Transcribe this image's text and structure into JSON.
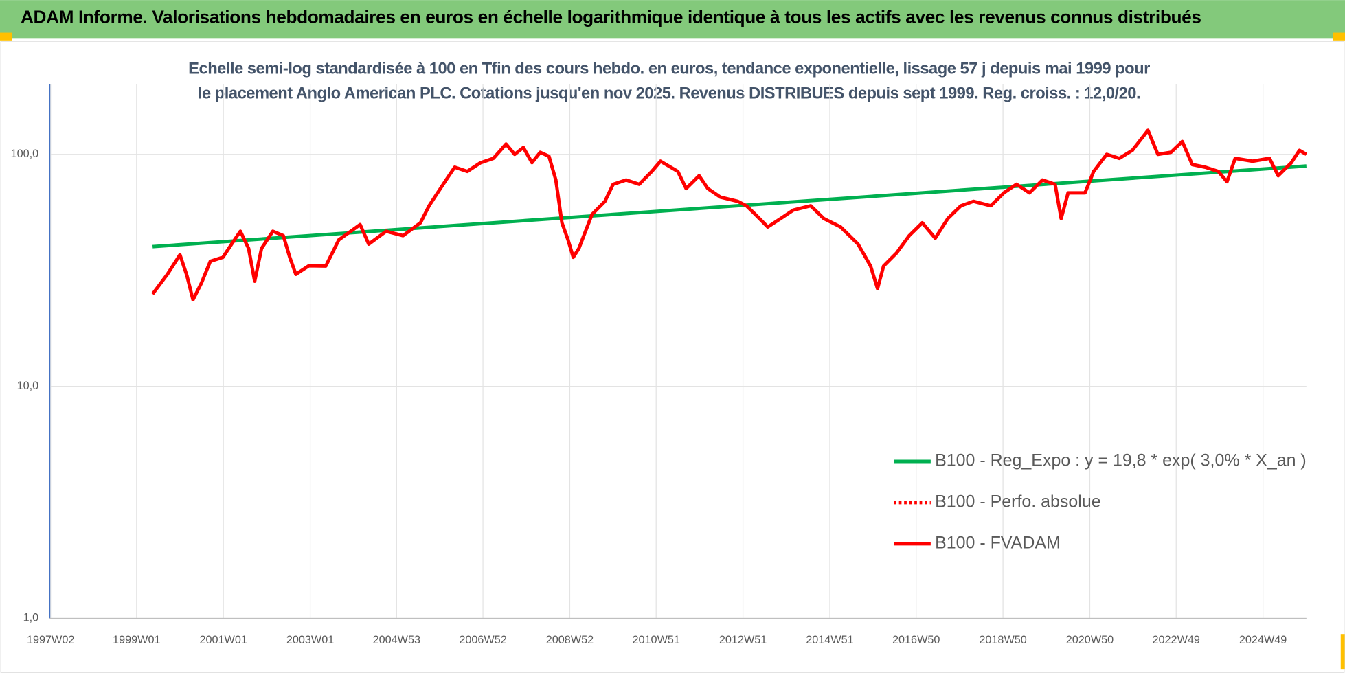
{
  "chart_data": {
    "type": "line",
    "title": "ADAM Informe. Valorisations hebdomadaires en euros en échelle logarithmique identique à tous les actifs avec les revenus connus distribués",
    "subtitle": "Echelle semi-log standardisée à 100 en Tfin des cours hebdo. en euros, tendance exponentielle, lissage 57 j depuis mai 1999 pour le placement Anglo American PLC. Cotations jusqu'en nov 2025. Revenus DISTRIBUES depuis sept 1999. Reg. croiss. : 12,0/20.",
    "log_y": true,
    "grid": true,
    "legend": "lower right",
    "xlim": [
      1997.0,
      2025.95
    ],
    "ylim": [
      1,
      200
    ],
    "yticks": [
      {
        "value": 1,
        "label": "1,0"
      },
      {
        "value": 10,
        "label": "10,0"
      },
      {
        "value": 100,
        "label": "100,0"
      }
    ],
    "xticks": [
      {
        "value": 1997.02,
        "label": "1997W02"
      },
      {
        "value": 1999.0,
        "label": "1999W01"
      },
      {
        "value": 2001.0,
        "label": "2001W01"
      },
      {
        "value": 2003.0,
        "label": "2003W01"
      },
      {
        "value": 2004.99,
        "label": "2004W53"
      },
      {
        "value": 2006.98,
        "label": "2006W52"
      },
      {
        "value": 2008.98,
        "label": "2008W52"
      },
      {
        "value": 2010.97,
        "label": "2010W51"
      },
      {
        "value": 2012.97,
        "label": "2012W51"
      },
      {
        "value": 2014.97,
        "label": "2014W51"
      },
      {
        "value": 2016.96,
        "label": "2016W50"
      },
      {
        "value": 2018.96,
        "label": "2018W50"
      },
      {
        "value": 2020.96,
        "label": "2020W50"
      },
      {
        "value": 2022.95,
        "label": "2022W49"
      },
      {
        "value": 2024.95,
        "label": "2024W49"
      }
    ],
    "series": [
      {
        "name": "B100 - Reg_Expo : y = 19,8 * exp( 3,0% *  X_an )",
        "color": "#00b050",
        "style": "solid",
        "x": [
          1999.37,
          2025.95
        ],
        "values": [
          40,
          89
        ]
      },
      {
        "name": "B100 - Perfo. absolue",
        "color": "#ff0000",
        "style": "dotted",
        "x": [],
        "values": []
      },
      {
        "name": "B100 - FVADAM",
        "color": "#ff0000",
        "style": "solid",
        "x": [
          1999.37,
          1999.71,
          2000.0,
          2000.16,
          2000.3,
          2000.5,
          2000.7,
          2000.99,
          2001.19,
          2001.39,
          2001.58,
          2001.72,
          2001.88,
          2002.14,
          2002.38,
          2002.53,
          2002.67,
          2002.97,
          2003.36,
          2003.66,
          2004.15,
          2004.35,
          2004.75,
          2005.14,
          2005.54,
          2005.74,
          2006.13,
          2006.33,
          2006.62,
          2006.92,
          2007.22,
          2007.51,
          2007.71,
          2007.91,
          2008.11,
          2008.3,
          2008.5,
          2008.66,
          2008.8,
          2008.94,
          2009.06,
          2009.19,
          2009.49,
          2009.79,
          2009.98,
          2010.28,
          2010.58,
          2010.87,
          2011.07,
          2011.47,
          2011.66,
          2011.96,
          2012.16,
          2012.45,
          2012.85,
          2013.05,
          2013.25,
          2013.54,
          2013.84,
          2014.13,
          2014.53,
          2014.83,
          2015.22,
          2015.62,
          2015.91,
          2016.07,
          2016.21,
          2016.51,
          2016.8,
          2017.1,
          2017.4,
          2017.69,
          2017.99,
          2018.28,
          2018.68,
          2018.98,
          2019.27,
          2019.57,
          2019.87,
          2020.16,
          2020.3,
          2020.46,
          2020.85,
          2021.05,
          2021.35,
          2021.64,
          2021.94,
          2022.3,
          2022.53,
          2022.83,
          2023.09,
          2023.32,
          2023.62,
          2023.92,
          2024.12,
          2024.31,
          2024.71,
          2025.1,
          2025.3,
          2025.6,
          2025.79,
          2025.95
        ],
        "values": [
          25,
          30.4,
          36.9,
          30,
          23.6,
          28,
          34.6,
          36,
          41,
          46.6,
          39.3,
          28.4,
          39.3,
          46.6,
          44.6,
          36,
          30.4,
          33.1,
          33,
          42.8,
          49.8,
          41,
          46.6,
          44.6,
          50.7,
          60.1,
          77.5,
          88,
          84.4,
          91.9,
          96,
          110.7,
          100,
          107,
          92,
          102,
          98,
          77.5,
          50.7,
          42.8,
          36,
          39.3,
          55,
          62.7,
          74.3,
          77.5,
          74.3,
          84.4,
          93.4,
          84.4,
          71.2,
          80.9,
          71.2,
          65.4,
          62.7,
          60,
          55.2,
          48.6,
          52.9,
          57.5,
          60,
          52.9,
          48.6,
          41,
          33,
          26.4,
          33,
          37.6,
          44.6,
          50.7,
          43.5,
          52.9,
          60,
          62.7,
          60,
          68.2,
          74.3,
          68.2,
          77.5,
          74.3,
          52.9,
          68.2,
          68.2,
          84.4,
          100,
          96,
          104,
          126.9,
          100,
          102,
          113.6,
          90.3,
          88,
          84.4,
          76.2,
          96,
          93.4,
          96,
          80.9,
          91.9,
          104,
          100
        ]
      }
    ]
  }
}
